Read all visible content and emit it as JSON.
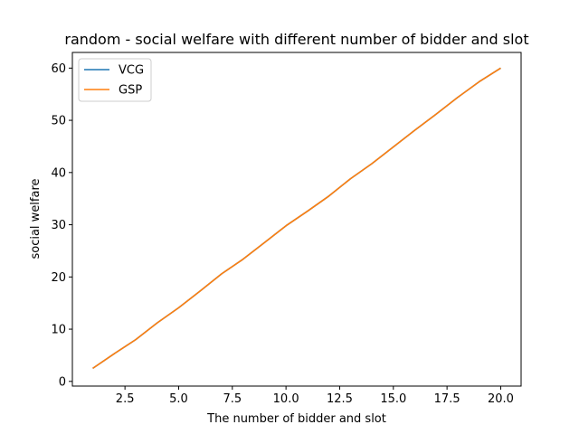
{
  "chart_data": {
    "type": "line",
    "title": "random - social welfare with different number of bidder and slot",
    "xlabel": "The number of bidder and slot",
    "ylabel": "social welfare",
    "xlim": [
      0.05,
      20.95
    ],
    "ylim": [
      -0.9,
      63
    ],
    "xticks": [
      2.5,
      5.0,
      7.5,
      10.0,
      12.5,
      15.0,
      17.5,
      20.0
    ],
    "xtick_labels": [
      "2.5",
      "5.0",
      "7.5",
      "10.0",
      "12.5",
      "15.0",
      "17.5",
      "20.0"
    ],
    "yticks": [
      0,
      10,
      20,
      30,
      40,
      50,
      60
    ],
    "ytick_labels": [
      "0",
      "10",
      "20",
      "30",
      "40",
      "50",
      "60"
    ],
    "grid": false,
    "legend_position": "top-left",
    "x": [
      1,
      2,
      3,
      4,
      5,
      6,
      7,
      8,
      9,
      10,
      11,
      12,
      13,
      14,
      15,
      16,
      17,
      18,
      19,
      20
    ],
    "series": [
      {
        "name": "VCG",
        "color": "#1f77b4",
        "values": [
          2.5,
          5.3,
          8.0,
          11.2,
          14.1,
          17.3,
          20.6,
          23.4,
          26.6,
          29.8,
          32.6,
          35.5,
          38.8,
          41.7,
          44.9,
          48.1,
          51.2,
          54.4,
          57.4,
          60.0
        ]
      },
      {
        "name": "GSP",
        "color": "#ff7f0e",
        "values": [
          2.5,
          5.3,
          8.0,
          11.2,
          14.1,
          17.3,
          20.6,
          23.4,
          26.6,
          29.8,
          32.6,
          35.5,
          38.8,
          41.7,
          44.9,
          48.1,
          51.2,
          54.4,
          57.4,
          60.0
        ]
      }
    ]
  }
}
